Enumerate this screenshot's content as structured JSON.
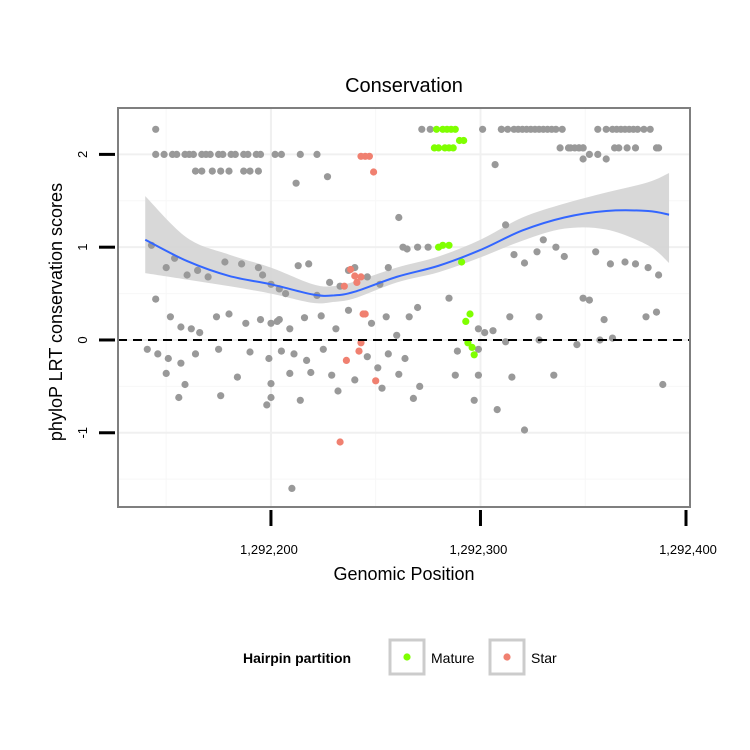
{
  "chart_data": {
    "type": "scatter",
    "title": "Conservation",
    "xlabel": "Genomic Position",
    "ylabel": "phyloP LRT conservation scores",
    "xlim": [
      1292127,
      1292400
    ],
    "ylim": [
      -1.8,
      2.5
    ],
    "x_ticks": [
      {
        "value": 1292200,
        "label": "1,292,200"
      },
      {
        "value": 1292300,
        "label": "1,292,300"
      },
      {
        "value": 1292400,
        "label": "1,292,400"
      }
    ],
    "y_ticks": [
      {
        "value": -1,
        "label": "-1"
      },
      {
        "value": 0,
        "label": "0"
      },
      {
        "value": 1,
        "label": "1"
      },
      {
        "value": 2,
        "label": "2"
      }
    ],
    "grid": true,
    "reference_line": {
      "y": 0,
      "style": "dashed"
    },
    "legend": {
      "title": "Hairpin partition",
      "position": "bottom",
      "entries": [
        {
          "label": "Mature",
          "color": "#7fff00"
        },
        {
          "label": "Star",
          "color": "#f08070"
        }
      ]
    },
    "colors": {
      "other": "#999999",
      "mature": "#7fff00",
      "star": "#f08070",
      "smooth": "#3366ff",
      "band": "#d4d4d4"
    },
    "smooth": {
      "x": [
        1292140,
        1292160,
        1292180,
        1292200,
        1292220,
        1292230,
        1292240,
        1292260,
        1292280,
        1292300,
        1292320,
        1292340,
        1292360,
        1292380,
        1292390
      ],
      "y": [
        1.08,
        0.85,
        0.69,
        0.6,
        0.49,
        0.48,
        0.52,
        0.68,
        0.8,
        0.97,
        1.18,
        1.32,
        1.39,
        1.39,
        1.35
      ],
      "lower": [
        0.72,
        0.65,
        0.58,
        0.5,
        0.4,
        0.41,
        0.45,
        0.62,
        0.73,
        0.89,
        1.07,
        1.2,
        1.19,
        1.02,
        0.83
      ],
      "upper": [
        1.55,
        1.1,
        0.92,
        0.78,
        0.6,
        0.58,
        0.63,
        0.78,
        0.9,
        1.08,
        1.32,
        1.47,
        1.59,
        1.7,
        1.8
      ]
    },
    "series": [
      {
        "name": "Mature",
        "x": [
          1292279,
          1292282,
          1292284,
          1292286,
          1292288,
          1292290,
          1292292,
          1292278,
          1292280,
          1292283,
          1292285,
          1292287,
          1292280,
          1292282,
          1292285,
          1292291,
          1292293,
          1292295,
          1292294,
          1292296,
          1292297
        ],
        "y": [
          2.27,
          2.27,
          2.27,
          2.27,
          2.27,
          2.15,
          2.15,
          2.07,
          2.07,
          2.07,
          2.07,
          2.07,
          1.0,
          1.02,
          1.02,
          0.84,
          0.2,
          0.28,
          -0.03,
          -0.08,
          -0.16
        ]
      },
      {
        "name": "Star",
        "x": [
          1292243,
          1292245,
          1292247,
          1292249,
          1292238,
          1292240,
          1292241,
          1292243,
          1292245,
          1292244,
          1292243,
          1292242,
          1292236,
          1292250,
          1292233,
          1292235
        ],
        "y": [
          1.98,
          1.98,
          1.98,
          1.81,
          0.76,
          0.69,
          0.62,
          0.68,
          0.28,
          0.28,
          -0.03,
          -0.12,
          -0.22,
          -0.44,
          -1.1,
          0.58
        ]
      },
      {
        "name": "",
        "x": [
          1292145,
          1292149,
          1292153,
          1292155,
          1292159,
          1292161,
          1292163,
          1292167,
          1292169,
          1292171,
          1292175,
          1292177,
          1292181,
          1292183,
          1292187,
          1292189,
          1292193,
          1292195,
          1292202,
          1292205,
          1292214,
          1292222,
          1292164,
          1292167,
          1292172,
          1292176,
          1292180,
          1292187,
          1292190,
          1292194,
          1292212,
          1292227,
          1292261,
          1292145,
          1292272,
          1292276,
          1292307,
          1292301,
          1292310,
          1292310,
          1292313,
          1292316,
          1292318,
          1292320,
          1292322,
          1292324,
          1292326,
          1292328,
          1292330,
          1292332,
          1292334,
          1292336,
          1292339,
          1292342,
          1292347,
          1292349,
          1292356,
          1292360,
          1292363,
          1292365,
          1292367,
          1292369,
          1292371,
          1292373,
          1292375,
          1292378,
          1292381,
          1292338,
          1292343,
          1292345,
          1292347,
          1292349,
          1292352,
          1292356,
          1292364,
          1292366,
          1292370,
          1292374,
          1292384,
          1292385,
          1292349,
          1292360,
          1292263,
          1292312,
          1292143,
          1292150,
          1292154,
          1292160,
          1292165,
          1292170,
          1292178,
          1292186,
          1292194,
          1292196,
          1292200,
          1292204,
          1292207,
          1292213,
          1292218,
          1292222,
          1292228,
          1292233,
          1292240,
          1292246,
          1292252,
          1292256,
          1292265,
          1292270,
          1292275,
          1292316,
          1292321,
          1292327,
          1292330,
          1292336,
          1292340,
          1292355,
          1292362,
          1292369,
          1292374,
          1292380,
          1292385,
          1292145,
          1292152,
          1292157,
          1292162,
          1292166,
          1292174,
          1292180,
          1292188,
          1292195,
          1292200,
          1292204,
          1292209,
          1292216,
          1292224,
          1292231,
          1292237,
          1292248,
          1292255,
          1292260,
          1292266,
          1292270,
          1292285,
          1292299,
          1292302,
          1292306,
          1292314,
          1292328,
          1292349,
          1292352,
          1292359,
          1292379,
          1292384,
          1292141,
          1292146,
          1292151,
          1292157,
          1292164,
          1292175,
          1292190,
          1292199,
          1292205,
          1292211,
          1292217,
          1292225,
          1292246,
          1292256,
          1292264,
          1292289,
          1292299,
          1292312,
          1292328,
          1292346,
          1292363,
          1292150,
          1292159,
          1292184,
          1292200,
          1292209,
          1292219,
          1292229,
          1292240,
          1292251,
          1292261,
          1292271,
          1292288,
          1292299,
          1292315,
          1292335,
          1292357,
          1292156,
          1292176,
          1292198,
          1292214,
          1292232,
          1292253,
          1292268,
          1292297,
          1292308,
          1292321,
          1292200,
          1292210,
          1292387,
          1292237,
          1292203
        ],
        "y": [
          2.0,
          2.0,
          2.0,
          2.0,
          2.0,
          2.0,
          2.0,
          2.0,
          2.0,
          2.0,
          2.0,
          2.0,
          2.0,
          2.0,
          2.0,
          2.0,
          2.0,
          2.0,
          2.0,
          2.0,
          2.0,
          2.0,
          1.82,
          1.82,
          1.82,
          1.82,
          1.82,
          1.82,
          1.82,
          1.82,
          1.69,
          1.76,
          1.32,
          2.27,
          2.27,
          2.27,
          1.89,
          2.27,
          2.27,
          2.27,
          2.27,
          2.27,
          2.27,
          2.27,
          2.27,
          2.27,
          2.27,
          2.27,
          2.27,
          2.27,
          2.27,
          2.27,
          2.27,
          2.07,
          2.07,
          2.07,
          2.27,
          2.27,
          2.27,
          2.27,
          2.27,
          2.27,
          2.27,
          2.27,
          2.27,
          2.27,
          2.27,
          2.07,
          2.07,
          2.07,
          2.07,
          2.07,
          2.0,
          2.0,
          2.07,
          2.07,
          2.07,
          2.07,
          2.07,
          2.07,
          1.95,
          1.95,
          1.0,
          1.24,
          1.02,
          0.78,
          0.88,
          0.7,
          0.75,
          0.68,
          0.84,
          0.82,
          0.78,
          0.7,
          0.6,
          0.55,
          0.5,
          0.8,
          0.82,
          0.48,
          0.62,
          0.58,
          0.78,
          0.68,
          0.6,
          0.78,
          0.98,
          1.0,
          1.0,
          0.92,
          0.83,
          0.95,
          1.08,
          1.0,
          0.9,
          0.95,
          0.82,
          0.84,
          0.82,
          0.78,
          0.7,
          0.44,
          0.25,
          0.14,
          0.12,
          0.08,
          0.25,
          0.28,
          0.18,
          0.22,
          0.18,
          0.22,
          0.12,
          0.24,
          0.26,
          0.12,
          0.32,
          0.18,
          0.25,
          0.05,
          0.25,
          0.35,
          0.45,
          0.12,
          0.08,
          0.1,
          0.25,
          0.25,
          0.45,
          0.43,
          0.22,
          0.25,
          0.3,
          -0.1,
          -0.15,
          -0.2,
          -0.25,
          -0.15,
          -0.1,
          -0.13,
          -0.2,
          -0.12,
          -0.15,
          -0.22,
          -0.1,
          -0.18,
          -0.15,
          -0.2,
          -0.12,
          -0.1,
          -0.02,
          0.0,
          -0.05,
          0.02,
          -0.36,
          -0.48,
          -0.4,
          -0.47,
          -0.36,
          -0.35,
          -0.38,
          -0.43,
          -0.3,
          -0.37,
          -0.5,
          -0.38,
          -0.38,
          -0.4,
          -0.38,
          0.0,
          -0.62,
          -0.6,
          -0.7,
          -0.65,
          -0.55,
          -0.52,
          -0.63,
          -0.65,
          -0.75,
          -0.97,
          -0.62,
          -1.6,
          -0.48,
          0.75,
          0.2
        ]
      }
    ]
  }
}
